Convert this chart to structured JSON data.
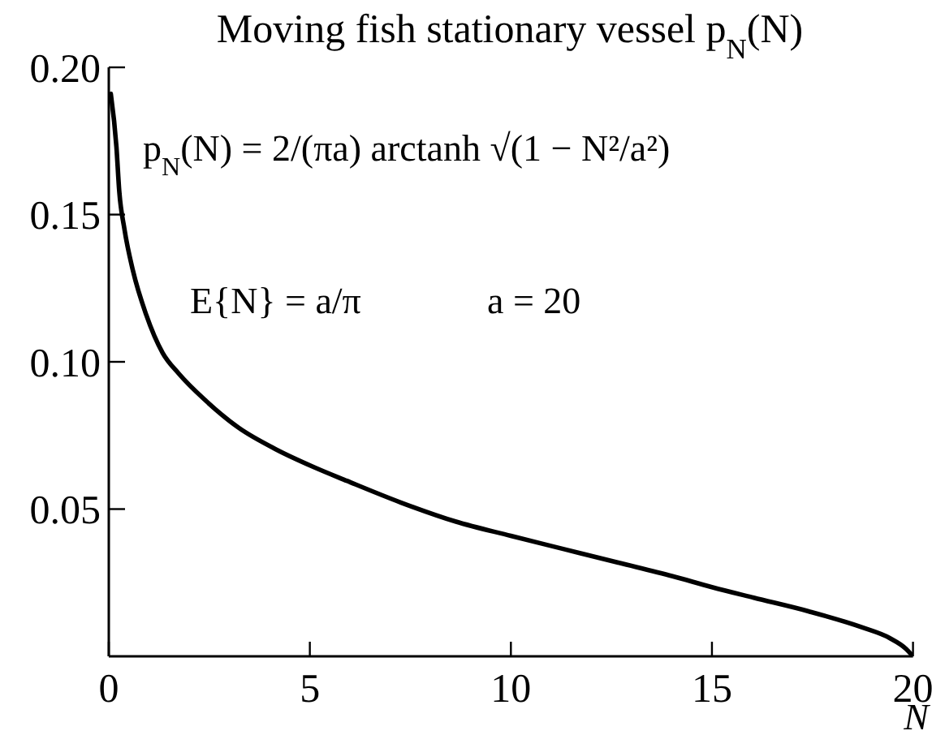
{
  "chart_data": {
    "type": "line",
    "title": "Moving fish stationary vessel p$_{N}$(N)",
    "xlabel": "N",
    "annotations": [
      "p$_{N}$(N) = 2/(πa) arctanh √(1 − N²/a²)",
      "E{N} = a/π",
      "a = 20"
    ],
    "x": [
      0.05,
      0.19,
      0.26,
      0.39,
      0.6,
      0.93,
      1.34,
      1.74,
      2.42,
      3.23,
      4.17,
      5.11,
      5.92,
      7.27,
      8.62,
      10,
      11.32,
      12.67,
      14.02,
      15,
      16.04,
      17.4,
      18.74,
      19.42,
      19.83,
      20
    ],
    "values": [
      0.191,
      0.173,
      0.158,
      0.145,
      0.131,
      0.116,
      0.103,
      0.096,
      0.0867,
      0.0776,
      0.0702,
      0.0642,
      0.0596,
      0.0522,
      0.0458,
      0.0409,
      0.0364,
      0.0318,
      0.0272,
      0.0235,
      0.0199,
      0.0153,
      0.0098,
      0.0062,
      0.0025,
      0
    ],
    "color": "#000000",
    "xlim": [
      0,
      20
    ],
    "xticks": [
      0,
      5,
      10,
      15,
      20
    ],
    "ylim": [
      0,
      0.2
    ],
    "yticks": [
      0.05,
      {
        "value": 0.1,
        "label": "0.10"
      },
      0.15,
      {
        "value": 0.2,
        "label": "0.20"
      }
    ]
  }
}
